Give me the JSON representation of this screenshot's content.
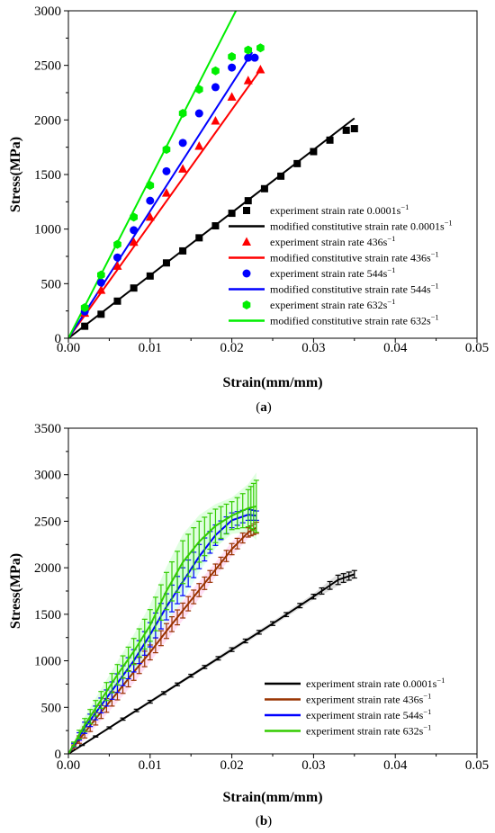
{
  "colors": {
    "black": "#000000",
    "red": "#ff0000",
    "blue": "#0000ff",
    "green": "#00ee00",
    "brown": "#993300",
    "blueB": "#0000ff",
    "greenB": "#33cc00"
  },
  "chart_data": [
    {
      "type": "scatter",
      "panel_label": "(a)",
      "xlabel": "Strain(mm/mm)",
      "ylabel": "Stress(MPa)",
      "xlim": [
        0,
        0.05
      ],
      "ylim": [
        0,
        3000
      ],
      "xticks": [
        "0.00",
        "0.01",
        "0.02",
        "0.03",
        "0.04",
        "0.05"
      ],
      "yticks": [
        "0",
        "500",
        "1000",
        "1500",
        "2000",
        "2500",
        "3000"
      ],
      "grid": false,
      "legend_position": "bottom-right",
      "series": [
        {
          "name": "experiment strain rate 0.0001s",
          "sup": "−1",
          "kind": "scatter",
          "marker": "square",
          "color": "#000000",
          "x": [
            0.002,
            0.004,
            0.006,
            0.008,
            0.01,
            0.012,
            0.014,
            0.016,
            0.018,
            0.02,
            0.022,
            0.024,
            0.026,
            0.028,
            0.03,
            0.032,
            0.034,
            0.035
          ],
          "y": [
            110,
            220,
            340,
            460,
            570,
            690,
            800,
            920,
            1030,
            1145,
            1260,
            1370,
            1485,
            1600,
            1710,
            1815,
            1905,
            1920
          ]
        },
        {
          "name": "modified constitutive strain rate 0.0001s",
          "sup": "−1",
          "kind": "line",
          "color": "#000000",
          "x": [
            0,
            0.035
          ],
          "y": [
            0,
            2015
          ]
        },
        {
          "name": "experiment strain rate 436s",
          "sup": "−1",
          "kind": "scatter",
          "marker": "triangle",
          "color": "#ff0000",
          "x": [
            0.002,
            0.004,
            0.006,
            0.008,
            0.01,
            0.012,
            0.014,
            0.016,
            0.018,
            0.02,
            0.022,
            0.0235
          ],
          "y": [
            230,
            440,
            660,
            880,
            1110,
            1330,
            1550,
            1760,
            1990,
            2210,
            2360,
            2460
          ]
        },
        {
          "name": "modified constitutive strain rate 436s",
          "sup": "−1",
          "kind": "line",
          "color": "#ff0000",
          "x": [
            0,
            0.0235
          ],
          "y": [
            0,
            2460
          ]
        },
        {
          "name": "experiment strain rate 544s",
          "sup": "−1",
          "kind": "scatter",
          "marker": "circle",
          "color": "#0000ff",
          "x": [
            0.002,
            0.004,
            0.006,
            0.008,
            0.01,
            0.012,
            0.014,
            0.016,
            0.018,
            0.02,
            0.022,
            0.0228
          ],
          "y": [
            245,
            510,
            740,
            990,
            1260,
            1530,
            1790,
            2060,
            2300,
            2480,
            2570,
            2570
          ]
        },
        {
          "name": "modified constitutive strain rate 544s",
          "sup": "−1",
          "kind": "line",
          "color": "#0000ff",
          "x": [
            0,
            0.0225
          ],
          "y": [
            0,
            2620
          ]
        },
        {
          "name": "experiment strain rate 632s",
          "sup": "−1",
          "kind": "scatter",
          "marker": "hexagon",
          "color": "#00ee00",
          "x": [
            0.002,
            0.004,
            0.006,
            0.008,
            0.01,
            0.012,
            0.014,
            0.016,
            0.018,
            0.02,
            0.022,
            0.0235
          ],
          "y": [
            280,
            580,
            860,
            1110,
            1400,
            1730,
            2060,
            2280,
            2450,
            2580,
            2640,
            2660
          ]
        },
        {
          "name": "modified constitutive strain rate 632s",
          "sup": "−1",
          "kind": "line",
          "color": "#00ee00",
          "x": [
            0,
            0.0205
          ],
          "y": [
            0,
            3000
          ]
        }
      ]
    },
    {
      "type": "line",
      "panel_label": "(b)",
      "xlabel": "Strain(mm/mm)",
      "ylabel": "Stress(MPa)",
      "xlim": [
        0,
        0.05
      ],
      "ylim": [
        0,
        3500
      ],
      "xticks": [
        "0.00",
        "0.01",
        "0.02",
        "0.03",
        "0.04",
        "0.05"
      ],
      "yticks": [
        "0",
        "500",
        "1000",
        "1500",
        "2000",
        "2500",
        "3000",
        "3500"
      ],
      "grid": false,
      "legend_position": "bottom-right",
      "series": [
        {
          "name": "experiment strain rate 0.0001s",
          "sup": "−1",
          "color": "#000000",
          "band": "#cccccc",
          "x": [
            0,
            0.005,
            0.01,
            0.015,
            0.02,
            0.025,
            0.03,
            0.033,
            0.035
          ],
          "y": [
            0,
            280,
            560,
            840,
            1120,
            1400,
            1690,
            1870,
            1930
          ],
          "err": [
            0,
            10,
            15,
            15,
            20,
            20,
            25,
            50,
            40
          ]
        },
        {
          "name": "experiment strain rate 436s",
          "sup": "−1",
          "color": "#993300",
          "band": "#ffccee",
          "x": [
            0,
            0.002,
            0.004,
            0.006,
            0.008,
            0.01,
            0.012,
            0.014,
            0.016,
            0.018,
            0.02,
            0.022,
            0.023
          ],
          "y": [
            0,
            230,
            450,
            660,
            880,
            1090,
            1320,
            1540,
            1760,
            1980,
            2200,
            2380,
            2430
          ],
          "err": [
            0,
            60,
            70,
            80,
            90,
            80,
            80,
            80,
            70,
            60,
            60,
            50,
            60
          ]
        },
        {
          "name": "experiment strain rate 544s",
          "sup": "−1",
          "color": "#0000ff",
          "band": "#ccffee",
          "x": [
            0,
            0.002,
            0.004,
            0.006,
            0.008,
            0.01,
            0.012,
            0.014,
            0.016,
            0.018,
            0.02,
            0.022,
            0.023
          ],
          "y": [
            0,
            280,
            520,
            760,
            1000,
            1280,
            1580,
            1850,
            2120,
            2350,
            2510,
            2570,
            2560
          ],
          "err": [
            0,
            60,
            80,
            100,
            120,
            130,
            140,
            150,
            130,
            110,
            80,
            60,
            50
          ]
        },
        {
          "name": "experiment strain rate 632s",
          "sup": "−1",
          "color": "#33cc00",
          "band": "#ccffcc",
          "x": [
            0,
            0.002,
            0.004,
            0.006,
            0.008,
            0.01,
            0.012,
            0.014,
            0.016,
            0.018,
            0.02,
            0.022,
            0.023
          ],
          "y": [
            0,
            310,
            580,
            850,
            1100,
            1380,
            1750,
            2060,
            2280,
            2450,
            2560,
            2640,
            2660
          ],
          "err": [
            0,
            70,
            90,
            110,
            140,
            170,
            200,
            230,
            220,
            180,
            150,
            200,
            280
          ]
        }
      ]
    }
  ]
}
